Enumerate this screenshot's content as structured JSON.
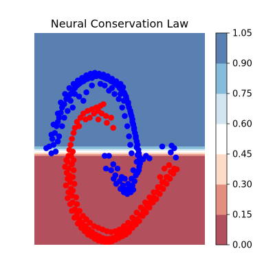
{
  "chart_data": {
    "type": "scatter",
    "title": "Neural Conservation Law",
    "xlabel": "",
    "ylabel": "",
    "xlim": [
      -1.5,
      2.5
    ],
    "ylim": [
      -1.0,
      1.5
    ],
    "grid": false,
    "axes_visible": false,
    "background": {
      "type": "filled_contour",
      "description_boundary_y": 0.1,
      "levels": [
        0.0,
        0.15,
        0.3,
        0.45,
        0.6,
        0.75,
        0.9,
        1.05
      ],
      "bands": [
        {
          "range": [
            -1.0,
            0.05
          ],
          "level_index": 0
        },
        {
          "range": [
            0.05,
            0.07
          ],
          "level_index": 1
        },
        {
          "range": [
            0.07,
            0.09
          ],
          "level_index": 2
        },
        {
          "range": [
            0.09,
            0.11
          ],
          "level_index": 3
        },
        {
          "range": [
            0.11,
            0.13
          ],
          "level_index": 4
        },
        {
          "range": [
            0.13,
            0.16
          ],
          "level_index": 5
        },
        {
          "range": [
            0.16,
            1.5
          ],
          "level_index": 6
        }
      ]
    },
    "colorbar": {
      "ticks": [
        "0.00",
        "0.15",
        "0.30",
        "0.45",
        "0.60",
        "0.75",
        "0.90",
        "1.05"
      ],
      "colors": [
        "#b2505e",
        "#e48e7f",
        "#fddbc7",
        "#ffffff",
        "#d2e6f1",
        "#85bcd9",
        "#5a80b2"
      ]
    },
    "series": [
      {
        "color": "#0000ff",
        "points": [
          [
            -1.22,
            0.14
          ],
          [
            -1.1,
            0.08
          ],
          [
            -1.15,
            0.16
          ],
          [
            -1.05,
            0.18
          ],
          [
            -1.08,
            0.25
          ],
          [
            -1.02,
            0.32
          ],
          [
            -1.1,
            0.3
          ],
          [
            -0.98,
            0.4
          ],
          [
            -0.95,
            0.45
          ],
          [
            -1.05,
            0.42
          ],
          [
            -0.92,
            0.5
          ],
          [
            -0.88,
            0.56
          ],
          [
            -0.95,
            0.55
          ],
          [
            -0.85,
            0.62
          ],
          [
            -0.8,
            0.66
          ],
          [
            -0.88,
            0.68
          ],
          [
            -0.75,
            0.72
          ],
          [
            -0.7,
            0.75
          ],
          [
            -0.78,
            0.78
          ],
          [
            -0.65,
            0.78
          ],
          [
            -0.6,
            0.82
          ],
          [
            -0.68,
            0.85
          ],
          [
            -0.55,
            0.85
          ],
          [
            -0.5,
            0.88
          ],
          [
            -0.58,
            0.9
          ],
          [
            -0.45,
            0.9
          ],
          [
            -0.4,
            0.92
          ],
          [
            -0.48,
            0.94
          ],
          [
            -0.35,
            0.93
          ],
          [
            -0.3,
            0.95
          ],
          [
            -0.38,
            0.97
          ],
          [
            -0.25,
            0.96
          ],
          [
            -0.2,
            0.98
          ],
          [
            -0.28,
            1.0
          ],
          [
            -0.15,
            0.97
          ],
          [
            -0.1,
            0.99
          ],
          [
            -0.18,
            1.02
          ],
          [
            -0.05,
            0.99
          ],
          [
            0.0,
            1.0
          ],
          [
            -0.08,
            1.03
          ],
          [
            0.05,
            0.99
          ],
          [
            0.1,
            0.98
          ],
          [
            0.02,
            1.02
          ],
          [
            0.15,
            0.97
          ],
          [
            0.2,
            0.96
          ],
          [
            0.12,
            1.01
          ],
          [
            0.25,
            0.95
          ],
          [
            0.3,
            0.93
          ],
          [
            0.22,
            0.99
          ],
          [
            0.35,
            0.92
          ],
          [
            0.4,
            0.9
          ],
          [
            0.32,
            0.96
          ],
          [
            0.45,
            0.88
          ],
          [
            0.5,
            0.85
          ],
          [
            0.42,
            0.93
          ],
          [
            0.55,
            0.82
          ],
          [
            0.6,
            0.8
          ],
          [
            0.52,
            0.9
          ],
          [
            0.62,
            0.78
          ],
          [
            0.66,
            0.72
          ],
          [
            0.58,
            0.86
          ],
          [
            0.7,
            0.68
          ],
          [
            0.72,
            0.62
          ],
          [
            0.65,
            0.75
          ],
          [
            0.75,
            0.58
          ],
          [
            0.78,
            0.52
          ],
          [
            0.7,
            0.66
          ],
          [
            0.8,
            0.48
          ],
          [
            0.82,
            0.42
          ],
          [
            0.76,
            0.55
          ],
          [
            0.84,
            0.38
          ],
          [
            0.86,
            0.32
          ],
          [
            0.8,
            0.45
          ],
          [
            0.88,
            0.28
          ],
          [
            0.9,
            0.22
          ],
          [
            0.84,
            0.36
          ],
          [
            0.92,
            0.18
          ],
          [
            0.94,
            0.12
          ],
          [
            0.88,
            0.26
          ],
          [
            0.95,
            0.08
          ],
          [
            0.96,
            0.04
          ],
          [
            0.9,
            0.15
          ],
          [
            0.97,
            0.0
          ],
          [
            0.98,
            -0.04
          ],
          [
            0.92,
            0.06
          ],
          [
            0.96,
            -0.08
          ],
          [
            0.95,
            -0.12
          ],
          [
            0.9,
            -0.02
          ],
          [
            0.92,
            -0.15
          ],
          [
            -0.35,
            0.7
          ],
          [
            -0.45,
            0.75
          ],
          [
            -0.28,
            0.8
          ],
          [
            -0.6,
            0.62
          ],
          [
            -0.72,
            0.58
          ],
          [
            0.25,
            0.82
          ],
          [
            0.38,
            0.78
          ],
          [
            0.48,
            0.72
          ],
          [
            0.56,
            0.62
          ],
          [
            0.62,
            0.52
          ],
          [
            0.68,
            0.4
          ],
          [
            0.72,
            0.28
          ],
          [
            0.75,
            0.18
          ],
          [
            0.78,
            0.08
          ],
          [
            -0.85,
            0.4
          ],
          [
            -0.92,
            0.28
          ],
          [
            -0.95,
            0.22
          ],
          [
            -1.0,
            0.1
          ],
          [
            -0.8,
            0.5
          ],
          [
            -0.65,
            0.7
          ],
          [
            -0.55,
            0.78
          ],
          [
            -0.15,
            0.88
          ],
          [
            0.05,
            0.9
          ],
          [
            0.15,
            0.88
          ],
          [
            0.32,
            0.85
          ],
          [
            0.52,
            0.78
          ],
          [
            0.6,
            0.7
          ],
          [
            1.05,
            0.01
          ],
          [
            1.12,
            0.05
          ],
          [
            1.2,
            0.02
          ],
          [
            1.5,
            0.16
          ],
          [
            1.72,
            0.17
          ],
          [
            1.82,
            0.03
          ],
          [
            1.78,
            0.14
          ],
          [
            1.7,
            0.09
          ],
          [
            0.15,
            0.05
          ],
          [
            0.25,
            0.05
          ],
          [
            0.18,
            -0.1
          ],
          [
            0.3,
            -0.12
          ],
          [
            0.4,
            -0.18
          ],
          [
            0.5,
            -0.25
          ],
          [
            0.58,
            -0.3
          ],
          [
            0.65,
            -0.35
          ],
          [
            0.72,
            -0.33
          ],
          [
            0.8,
            -0.3
          ],
          [
            0.85,
            -0.25
          ],
          [
            0.88,
            -0.18
          ],
          [
            0.45,
            -0.1
          ],
          [
            0.55,
            -0.2
          ],
          [
            0.62,
            -0.22
          ],
          [
            0.7,
            -0.28
          ],
          [
            0.78,
            -0.22
          ],
          [
            0.82,
            -0.12
          ],
          [
            0.35,
            -0.05
          ],
          [
            0.6,
            -0.38
          ],
          [
            0.68,
            -0.4
          ],
          [
            0.76,
            -0.38
          ],
          [
            0.82,
            -0.35
          ],
          [
            0.52,
            -0.34
          ],
          [
            0.42,
            -0.28
          ],
          [
            0.36,
            -0.22
          ]
        ]
      },
      {
        "color": "#ff0000",
        "points": [
          [
            -0.15,
            0.6
          ],
          [
            -0.05,
            0.62
          ],
          [
            0.05,
            0.64
          ],
          [
            0.12,
            0.66
          ],
          [
            -0.25,
            0.58
          ],
          [
            -0.35,
            0.55
          ],
          [
            -0.42,
            0.5
          ],
          [
            -0.5,
            0.45
          ],
          [
            -0.55,
            0.38
          ],
          [
            -0.1,
            0.55
          ],
          [
            0.0,
            0.58
          ],
          [
            0.08,
            0.55
          ],
          [
            0.18,
            0.52
          ],
          [
            0.3,
            0.5
          ],
          [
            -0.45,
            0.4
          ],
          [
            -0.58,
            0.32
          ],
          [
            -0.62,
            0.25
          ],
          [
            -0.65,
            0.18
          ],
          [
            -0.68,
            0.12
          ],
          [
            -0.7,
            0.05
          ],
          [
            -0.72,
            -0.02
          ],
          [
            -0.7,
            -0.1
          ],
          [
            -0.68,
            -0.18
          ],
          [
            -0.66,
            -0.26
          ],
          [
            -0.64,
            -0.34
          ],
          [
            -0.62,
            -0.42
          ],
          [
            -0.6,
            -0.5
          ],
          [
            -0.55,
            -0.58
          ],
          [
            -0.5,
            -0.64
          ],
          [
            -0.45,
            -0.7
          ],
          [
            -0.38,
            -0.74
          ],
          [
            -0.3,
            -0.78
          ],
          [
            -0.22,
            -0.82
          ],
          [
            -0.14,
            -0.85
          ],
          [
            -0.06,
            -0.88
          ],
          [
            0.02,
            -0.9
          ],
          [
            0.1,
            -0.92
          ],
          [
            0.18,
            -0.93
          ],
          [
            0.26,
            -0.93
          ],
          [
            0.34,
            -0.92
          ],
          [
            0.42,
            -0.9
          ],
          [
            0.5,
            -0.88
          ],
          [
            0.58,
            -0.85
          ],
          [
            0.66,
            -0.82
          ],
          [
            0.74,
            -0.78
          ],
          [
            0.82,
            -0.74
          ],
          [
            0.9,
            -0.7
          ],
          [
            0.98,
            -0.65
          ],
          [
            1.06,
            -0.6
          ],
          [
            1.14,
            -0.55
          ],
          [
            1.22,
            -0.5
          ],
          [
            1.3,
            -0.44
          ],
          [
            1.38,
            -0.38
          ],
          [
            1.46,
            -0.32
          ],
          [
            1.54,
            -0.26
          ],
          [
            1.62,
            -0.2
          ],
          [
            1.7,
            -0.14
          ],
          [
            1.78,
            -0.1
          ],
          [
            -0.75,
            0.0
          ],
          [
            -0.78,
            -0.08
          ],
          [
            -0.74,
            -0.15
          ],
          [
            -0.72,
            -0.22
          ],
          [
            -0.76,
            -0.3
          ],
          [
            -0.7,
            -0.38
          ],
          [
            -0.72,
            -0.45
          ],
          [
            -0.66,
            -0.52
          ],
          [
            -0.62,
            -0.6
          ],
          [
            -0.56,
            -0.68
          ],
          [
            -0.48,
            -0.75
          ],
          [
            -0.4,
            -0.8
          ],
          [
            -0.32,
            -0.84
          ],
          [
            -0.24,
            -0.88
          ],
          [
            -0.16,
            -0.9
          ],
          [
            -0.08,
            -0.93
          ],
          [
            0.0,
            -0.95
          ],
          [
            0.08,
            -0.96
          ],
          [
            0.16,
            -0.97
          ],
          [
            0.24,
            -0.98
          ],
          [
            0.32,
            -0.96
          ],
          [
            0.4,
            -0.94
          ],
          [
            0.48,
            -0.92
          ],
          [
            0.56,
            -0.9
          ],
          [
            0.64,
            -0.88
          ],
          [
            0.72,
            -0.85
          ],
          [
            0.8,
            -0.8
          ],
          [
            0.88,
            -0.76
          ],
          [
            0.96,
            -0.72
          ],
          [
            1.04,
            -0.66
          ],
          [
            1.12,
            -0.62
          ],
          [
            1.2,
            -0.56
          ],
          [
            1.28,
            -0.5
          ],
          [
            1.36,
            -0.46
          ],
          [
            1.44,
            -0.4
          ],
          [
            1.52,
            -0.34
          ],
          [
            1.6,
            -0.28
          ],
          [
            1.68,
            -0.22
          ],
          [
            1.76,
            -0.16
          ],
          [
            1.84,
            -0.11
          ],
          [
            -0.6,
            0.1
          ],
          [
            -0.58,
            0.0
          ],
          [
            -0.62,
            -0.05
          ],
          [
            -0.64,
            0.05
          ],
          [
            -0.58,
            -0.12
          ],
          [
            -0.6,
            -0.2
          ],
          [
            -0.56,
            -0.28
          ],
          [
            -0.6,
            -0.36
          ],
          [
            -0.52,
            -0.44
          ],
          [
            -0.5,
            -0.52
          ],
          [
            -0.44,
            -0.6
          ],
          [
            -0.36,
            -0.66
          ],
          [
            -0.28,
            -0.7
          ],
          [
            -0.2,
            -0.74
          ],
          [
            -0.1,
            -0.78
          ],
          [
            0.0,
            -0.8
          ],
          [
            0.1,
            -0.82
          ],
          [
            0.2,
            -0.84
          ],
          [
            0.3,
            -0.85
          ],
          [
            0.4,
            -0.84
          ],
          [
            0.5,
            -0.82
          ],
          [
            0.6,
            -0.78
          ],
          [
            0.7,
            -0.74
          ],
          [
            0.8,
            -0.68
          ],
          [
            0.9,
            -0.62
          ],
          [
            1.0,
            -0.56
          ],
          [
            1.1,
            -0.5
          ],
          [
            1.2,
            -0.44
          ],
          [
            1.3,
            -0.38
          ],
          [
            1.4,
            -0.32
          ],
          [
            1.5,
            -0.26
          ],
          [
            1.6,
            -0.2
          ],
          [
            1.45,
            -0.2
          ],
          [
            1.55,
            -0.1
          ],
          [
            1.66,
            -0.06
          ],
          [
            0.2,
            0.44
          ],
          [
            0.35,
            0.38
          ],
          [
            -0.3,
            0.48
          ],
          [
            -0.2,
            0.5
          ],
          [
            0.0,
            0.48
          ]
        ]
      }
    ]
  }
}
